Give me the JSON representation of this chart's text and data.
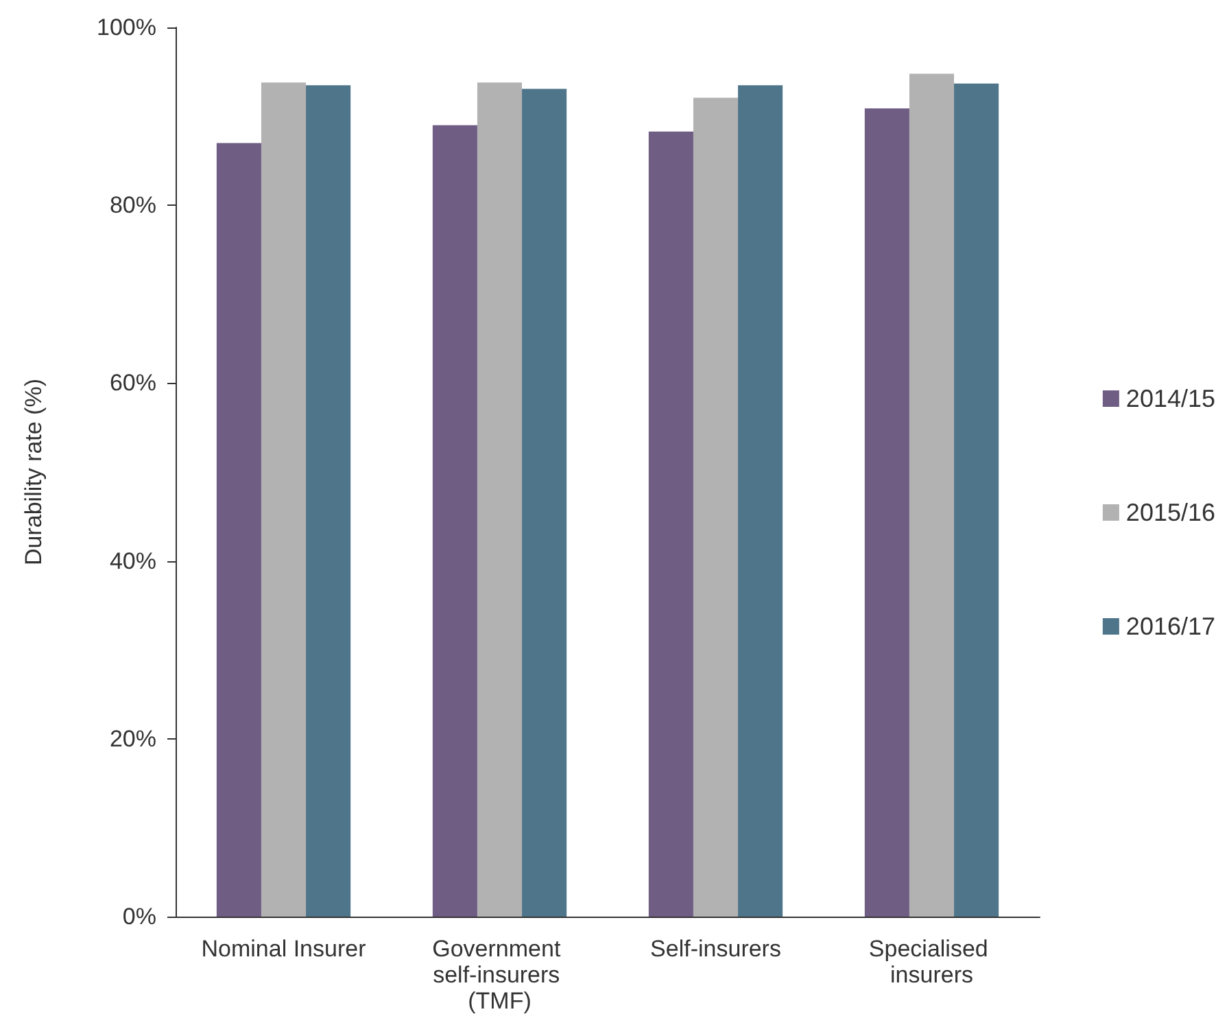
{
  "chart_data": {
    "type": "bar",
    "ylabel": "Durability rate (%)",
    "categories": [
      "Nominal Insurer",
      "Government self-insurers (TMF)",
      "Self-insurers",
      "Specialised insurers"
    ],
    "series": [
      {
        "name": "2014/15",
        "color": "#705d84",
        "values": [
          87.0,
          89.0,
          88.3,
          90.9
        ]
      },
      {
        "name": "2015/16",
        "color": "#b2b2b2",
        "values": [
          93.8,
          93.8,
          92.1,
          94.8
        ]
      },
      {
        "name": "2016/17",
        "color": "#4e758a",
        "values": [
          93.5,
          93.1,
          93.5,
          93.7
        ]
      }
    ],
    "ylim": [
      0,
      100
    ],
    "yticks": [
      {
        "value": 0,
        "label": "0%"
      },
      {
        "value": 20,
        "label": "20%"
      },
      {
        "value": 40,
        "label": "40%"
      },
      {
        "value": 60,
        "label": "60%"
      },
      {
        "value": 80,
        "label": "80%"
      },
      {
        "value": 100,
        "label": "100%"
      }
    ],
    "grid": false,
    "legend": "right"
  }
}
